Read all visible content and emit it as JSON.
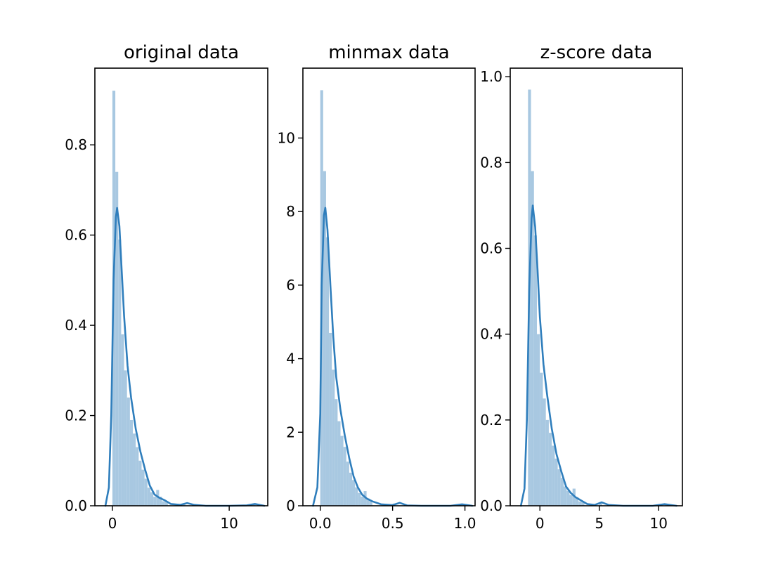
{
  "chart_data": [
    {
      "type": "histogram",
      "title": "original data",
      "xlabel": "",
      "ylabel": "",
      "xlim": [
        -1.5,
        13.3
      ],
      "ylim": [
        0,
        0.97
      ],
      "xticks": [
        0,
        10
      ],
      "xtick_labels": [
        "0",
        "10"
      ],
      "yticks": [
        0.0,
        0.2,
        0.4,
        0.6,
        0.8
      ],
      "ytick_labels": [
        "0.0",
        "0.2",
        "0.4",
        "0.6",
        "0.8"
      ],
      "bins": [
        {
          "x0": 0.0,
          "x1": 0.25,
          "value": 0.92
        },
        {
          "x0": 0.25,
          "x1": 0.5,
          "value": 0.74
        },
        {
          "x0": 0.5,
          "x1": 0.75,
          "value": 0.59
        },
        {
          "x0": 0.75,
          "x1": 1.0,
          "value": 0.38
        },
        {
          "x0": 1.0,
          "x1": 1.25,
          "value": 0.3
        },
        {
          "x0": 1.25,
          "x1": 1.5,
          "value": 0.24
        },
        {
          "x0": 1.5,
          "x1": 1.75,
          "value": 0.19
        },
        {
          "x0": 1.75,
          "x1": 2.0,
          "value": 0.16
        },
        {
          "x0": 2.0,
          "x1": 2.25,
          "value": 0.13
        },
        {
          "x0": 2.25,
          "x1": 2.5,
          "value": 0.1
        },
        {
          "x0": 2.5,
          "x1": 2.75,
          "value": 0.08
        },
        {
          "x0": 2.75,
          "x1": 3.0,
          "value": 0.06
        },
        {
          "x0": 3.0,
          "x1": 3.25,
          "value": 0.04
        },
        {
          "x0": 3.25,
          "x1": 3.5,
          "value": 0.03
        },
        {
          "x0": 3.5,
          "x1": 3.75,
          "value": 0.02
        },
        {
          "x0": 3.75,
          "x1": 4.0,
          "value": 0.035
        },
        {
          "x0": 4.0,
          "x1": 4.25,
          "value": 0.02
        },
        {
          "x0": 4.25,
          "x1": 4.5,
          "value": 0.01
        },
        {
          "x0": 4.5,
          "x1": 4.75,
          "value": 0.01
        },
        {
          "x0": 6.0,
          "x1": 6.25,
          "value": 0.005
        },
        {
          "x0": 12.0,
          "x1": 12.25,
          "value": 0.004
        }
      ],
      "kde": [
        [
          -0.6,
          0.0
        ],
        [
          -0.3,
          0.04
        ],
        [
          -0.1,
          0.2
        ],
        [
          0.1,
          0.5
        ],
        [
          0.3,
          0.64
        ],
        [
          0.4,
          0.66
        ],
        [
          0.6,
          0.62
        ],
        [
          0.8,
          0.52
        ],
        [
          1.0,
          0.42
        ],
        [
          1.3,
          0.31
        ],
        [
          1.6,
          0.24
        ],
        [
          2.0,
          0.17
        ],
        [
          2.4,
          0.12
        ],
        [
          2.8,
          0.08
        ],
        [
          3.2,
          0.045
        ],
        [
          3.6,
          0.025
        ],
        [
          4.0,
          0.018
        ],
        [
          4.5,
          0.012
        ],
        [
          5.0,
          0.004
        ],
        [
          5.8,
          0.002
        ],
        [
          6.4,
          0.006
        ],
        [
          7.0,
          0.002
        ],
        [
          8.0,
          0.0
        ],
        [
          10.0,
          0.0
        ],
        [
          11.5,
          0.001
        ],
        [
          12.2,
          0.004
        ],
        [
          13.0,
          0.0
        ]
      ]
    },
    {
      "type": "histogram",
      "title": "minmax data",
      "xlabel": "",
      "ylabel": "",
      "xlim": [
        -0.12,
        1.07
      ],
      "ylim": [
        0,
        11.9
      ],
      "xticks": [
        0.0,
        0.5,
        1.0
      ],
      "xtick_labels": [
        "0.0",
        "0.5",
        "1.0"
      ],
      "yticks": [
        0,
        2,
        4,
        6,
        8,
        10
      ],
      "ytick_labels": [
        "0",
        "2",
        "4",
        "6",
        "8",
        "10"
      ],
      "bins": [
        {
          "x0": 0.0,
          "x1": 0.02,
          "value": 11.3
        },
        {
          "x0": 0.02,
          "x1": 0.04,
          "value": 9.1
        },
        {
          "x0": 0.04,
          "x1": 0.06,
          "value": 7.3
        },
        {
          "x0": 0.06,
          "x1": 0.08,
          "value": 4.7
        },
        {
          "x0": 0.08,
          "x1": 0.1,
          "value": 3.7
        },
        {
          "x0": 0.1,
          "x1": 0.12,
          "value": 2.9
        },
        {
          "x0": 0.12,
          "x1": 0.14,
          "value": 2.3
        },
        {
          "x0": 0.14,
          "x1": 0.16,
          "value": 1.9
        },
        {
          "x0": 0.16,
          "x1": 0.18,
          "value": 1.6
        },
        {
          "x0": 0.18,
          "x1": 0.2,
          "value": 1.2
        },
        {
          "x0": 0.2,
          "x1": 0.22,
          "value": 0.9
        },
        {
          "x0": 0.22,
          "x1": 0.24,
          "value": 0.7
        },
        {
          "x0": 0.24,
          "x1": 0.26,
          "value": 0.5
        },
        {
          "x0": 0.26,
          "x1": 0.28,
          "value": 0.35
        },
        {
          "x0": 0.28,
          "x1": 0.3,
          "value": 0.25
        },
        {
          "x0": 0.3,
          "x1": 0.32,
          "value": 0.4
        },
        {
          "x0": 0.32,
          "x1": 0.34,
          "value": 0.2
        },
        {
          "x0": 0.34,
          "x1": 0.36,
          "value": 0.12
        },
        {
          "x0": 0.5,
          "x1": 0.52,
          "value": 0.06
        },
        {
          "x0": 0.98,
          "x1": 1.0,
          "value": 0.05
        }
      ],
      "kde": [
        [
          -0.05,
          0.0
        ],
        [
          -0.02,
          0.5
        ],
        [
          0.0,
          2.5
        ],
        [
          0.01,
          6.0
        ],
        [
          0.025,
          7.9
        ],
        [
          0.035,
          8.1
        ],
        [
          0.05,
          7.5
        ],
        [
          0.07,
          6.0
        ],
        [
          0.09,
          4.6
        ],
        [
          0.11,
          3.5
        ],
        [
          0.14,
          2.6
        ],
        [
          0.17,
          1.9
        ],
        [
          0.2,
          1.3
        ],
        [
          0.23,
          0.8
        ],
        [
          0.26,
          0.5
        ],
        [
          0.29,
          0.3
        ],
        [
          0.32,
          0.2
        ],
        [
          0.36,
          0.12
        ],
        [
          0.42,
          0.04
        ],
        [
          0.5,
          0.02
        ],
        [
          0.55,
          0.08
        ],
        [
          0.6,
          0.01
        ],
        [
          0.7,
          0.0
        ],
        [
          0.9,
          0.0
        ],
        [
          0.98,
          0.04
        ],
        [
          1.05,
          0.0
        ]
      ]
    },
    {
      "type": "histogram",
      "title": "z-score data",
      "xlabel": "",
      "ylabel": "",
      "xlim": [
        -2.5,
        12.0
      ],
      "ylim": [
        0,
        1.02
      ],
      "xticks": [
        0,
        5,
        10
      ],
      "xtick_labels": [
        "0",
        "5",
        "10"
      ],
      "yticks": [
        0.0,
        0.2,
        0.4,
        0.6,
        0.8,
        1.0
      ],
      "ytick_labels": [
        "0.0",
        "0.2",
        "0.4",
        "0.6",
        "0.8",
        "1.0"
      ],
      "bins": [
        {
          "x0": -1.0,
          "x1": -0.75,
          "value": 0.97
        },
        {
          "x0": -0.75,
          "x1": -0.5,
          "value": 0.78
        },
        {
          "x0": -0.5,
          "x1": -0.25,
          "value": 0.63
        },
        {
          "x0": -0.25,
          "x1": 0.0,
          "value": 0.4
        },
        {
          "x0": 0.0,
          "x1": 0.25,
          "value": 0.31
        },
        {
          "x0": 0.25,
          "x1": 0.5,
          "value": 0.25
        },
        {
          "x0": 0.5,
          "x1": 0.75,
          "value": 0.2
        },
        {
          "x0": 0.75,
          "x1": 1.0,
          "value": 0.17
        },
        {
          "x0": 1.0,
          "x1": 1.25,
          "value": 0.14
        },
        {
          "x0": 1.25,
          "x1": 1.5,
          "value": 0.11
        },
        {
          "x0": 1.5,
          "x1": 1.75,
          "value": 0.085
        },
        {
          "x0": 1.75,
          "x1": 2.0,
          "value": 0.065
        },
        {
          "x0": 2.0,
          "x1": 2.25,
          "value": 0.045
        },
        {
          "x0": 2.25,
          "x1": 2.5,
          "value": 0.035
        },
        {
          "x0": 2.5,
          "x1": 2.75,
          "value": 0.025
        },
        {
          "x0": 2.75,
          "x1": 3.0,
          "value": 0.04
        },
        {
          "x0": 3.0,
          "x1": 3.25,
          "value": 0.02
        },
        {
          "x0": 3.25,
          "x1": 3.5,
          "value": 0.01
        },
        {
          "x0": 3.5,
          "x1": 3.75,
          "value": 0.01
        },
        {
          "x0": 5.0,
          "x1": 5.25,
          "value": 0.005
        },
        {
          "x0": 10.5,
          "x1": 10.75,
          "value": 0.004
        }
      ],
      "kde": [
        [
          -1.6,
          0.0
        ],
        [
          -1.3,
          0.04
        ],
        [
          -1.1,
          0.2
        ],
        [
          -0.9,
          0.5
        ],
        [
          -0.7,
          0.67
        ],
        [
          -0.6,
          0.7
        ],
        [
          -0.4,
          0.65
        ],
        [
          -0.2,
          0.55
        ],
        [
          0.0,
          0.44
        ],
        [
          0.3,
          0.33
        ],
        [
          0.6,
          0.26
        ],
        [
          1.0,
          0.18
        ],
        [
          1.4,
          0.12
        ],
        [
          1.8,
          0.08
        ],
        [
          2.2,
          0.045
        ],
        [
          2.6,
          0.03
        ],
        [
          3.0,
          0.02
        ],
        [
          3.5,
          0.012
        ],
        [
          4.0,
          0.004
        ],
        [
          4.6,
          0.002
        ],
        [
          5.2,
          0.008
        ],
        [
          5.8,
          0.002
        ],
        [
          7.0,
          0.0
        ],
        [
          9.5,
          0.0
        ],
        [
          10.5,
          0.004
        ],
        [
          11.5,
          0.0
        ]
      ]
    }
  ],
  "colors": {
    "bar_fill": "#a8c8e1",
    "kde_line": "#2f7ebc",
    "axes": "#000000"
  }
}
